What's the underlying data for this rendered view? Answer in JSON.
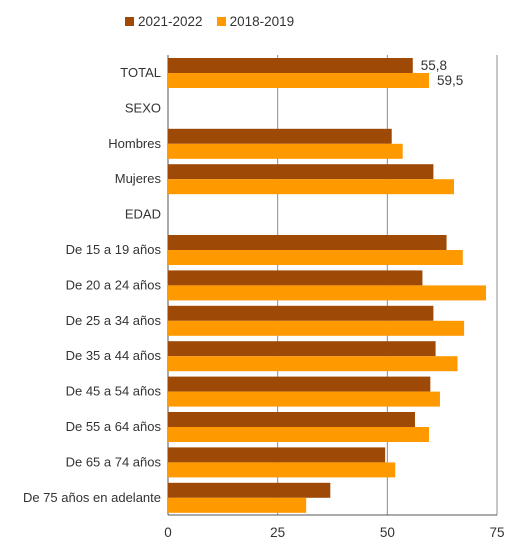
{
  "chart_data": {
    "type": "bar",
    "orientation": "horizontal",
    "categories": [
      "TOTAL",
      "SEXO",
      "Hombres",
      "Mujeres",
      "EDAD",
      "De 15 a 19 años",
      "De 20 a 24 años",
      "De 25 a 34 años",
      "De 35 a 44 años",
      "De 45 a 54 años",
      "De 55 a 64 años",
      "De 65 a 74 años",
      "De 75 años en adelante"
    ],
    "series": [
      {
        "name": "2021-2022",
        "color": "#9E4A06",
        "values": [
          55.8,
          null,
          51.0,
          60.5,
          null,
          63.5,
          58.0,
          60.5,
          61.0,
          59.8,
          56.3,
          49.5,
          37.0
        ]
      },
      {
        "name": "2018-2019",
        "color": "#FF9900",
        "values": [
          59.5,
          null,
          53.5,
          65.2,
          null,
          67.2,
          72.5,
          67.5,
          66.0,
          62.0,
          59.5,
          51.8,
          31.5
        ]
      }
    ],
    "data_labels": {
      "TOTAL": [
        "55,8",
        "59,5"
      ]
    },
    "xticks": [
      "0",
      "25",
      "50",
      "75"
    ],
    "xlim": [
      0,
      75
    ],
    "grid": "vertical",
    "legend": "top"
  }
}
